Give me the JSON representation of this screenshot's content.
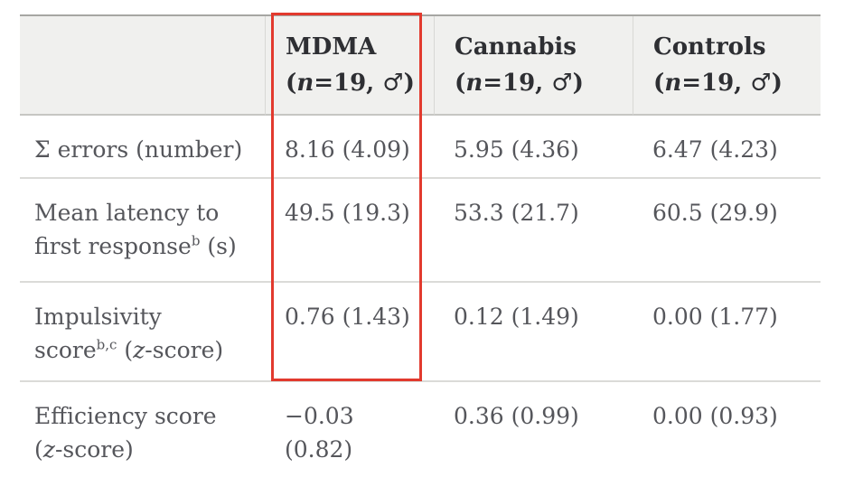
{
  "table": {
    "corner_label": "",
    "columns": [
      {
        "name": "MDMA",
        "sub": [
          {
            "t": "("
          },
          {
            "t": "n",
            "i": true
          },
          {
            "t": "=19, ♂)"
          }
        ]
      },
      {
        "name": "Cannabis",
        "sub": [
          {
            "t": "("
          },
          {
            "t": "n",
            "i": true
          },
          {
            "t": "=19, ♂)"
          }
        ]
      },
      {
        "name": "Controls",
        "sub": [
          {
            "t": "("
          },
          {
            "t": "n",
            "i": true
          },
          {
            "t": "=19, ♂)"
          }
        ]
      }
    ],
    "rows": [
      {
        "label": [
          {
            "t": "Σ errors (number)"
          }
        ],
        "values": [
          "8.16 (4.09)",
          "5.95 (4.36)",
          "6.47 (4.23)"
        ]
      },
      {
        "label": [
          {
            "t": "Mean latency to"
          },
          {
            "br": true
          },
          {
            "t": "first response"
          },
          {
            "t": "b",
            "sup": true
          },
          {
            "t": " (s)"
          }
        ],
        "values": [
          "49.5 (19.3)",
          "53.3 (21.7)",
          "60.5 (29.9)"
        ]
      },
      {
        "label": [
          {
            "t": "Impulsivity"
          },
          {
            "br": true
          },
          {
            "t": "score"
          },
          {
            "t": "b,c",
            "sup": true
          },
          {
            "t": " ("
          },
          {
            "t": "z",
            "i": true
          },
          {
            "t": "-score)"
          }
        ],
        "values": [
          "0.76 (1.43)",
          "0.12 (1.49)",
          "0.00 (1.77)"
        ]
      },
      {
        "label": [
          {
            "t": "Efficiency score"
          },
          {
            "br": true
          },
          {
            "t": "("
          },
          {
            "t": "z",
            "i": true
          },
          {
            "t": "-score)"
          }
        ],
        "values": [
          "−0.03\n(0.82)",
          "0.36 (0.99)",
          "0.00 (0.93)"
        ]
      }
    ]
  },
  "annotation": {
    "type": "highlight-rectangle",
    "highlighted_column": "MDMA",
    "color": "#e23a2e"
  },
  "colors": {
    "page_background": "#ffffff",
    "header_background": "#f0f0ee",
    "header_text": "#2e2f33",
    "body_text": "#55565b",
    "table_top_border": "#a6a6a3",
    "row_separator": "#dbdbd8"
  }
}
